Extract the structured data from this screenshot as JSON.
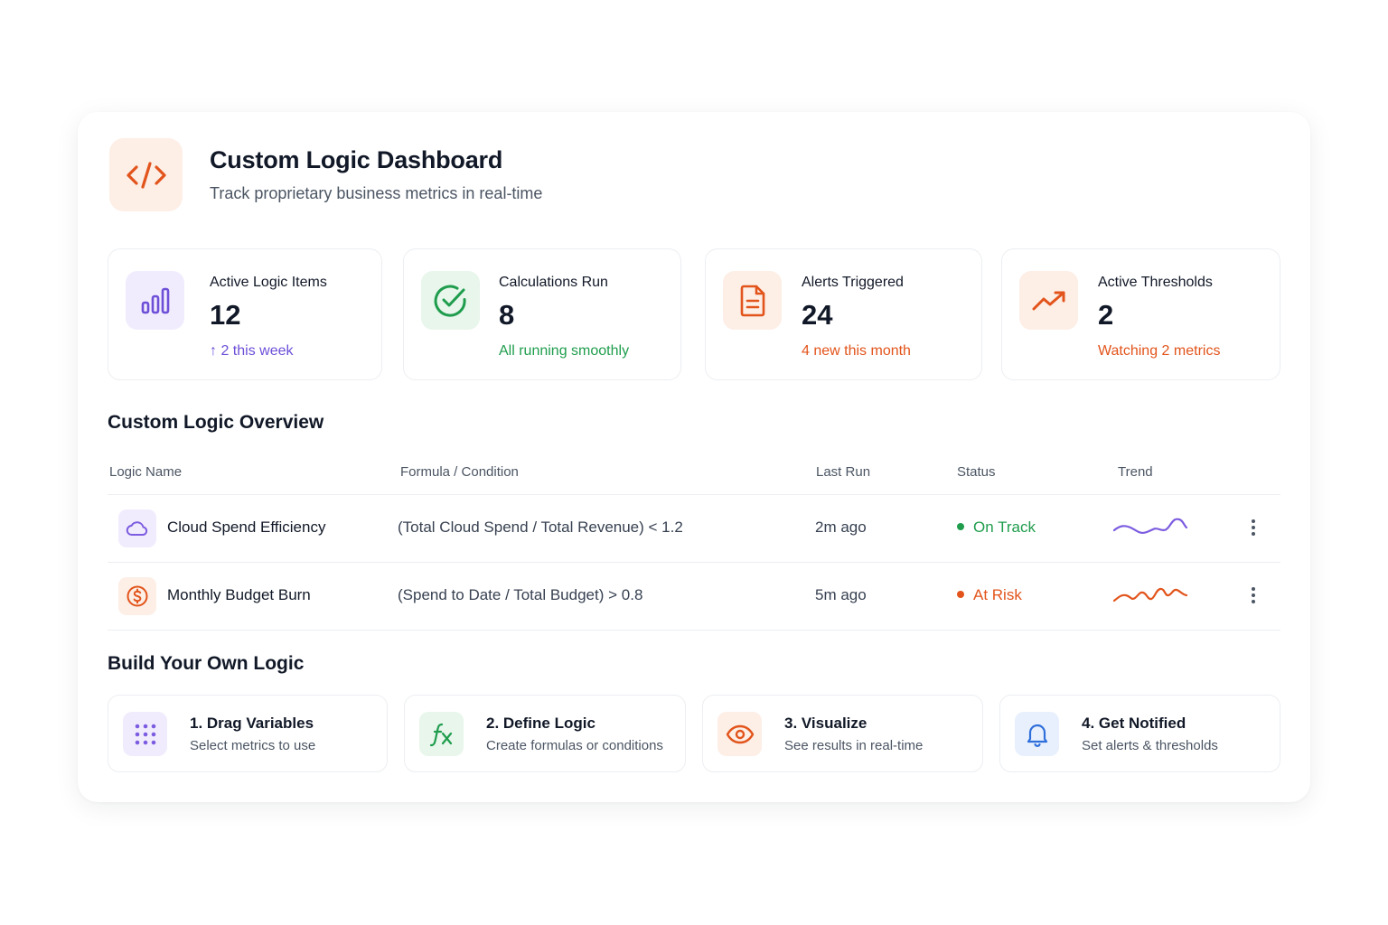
{
  "header": {
    "title": "Custom Logic Dashboard",
    "subtitle": "Track proprietary business metrics in real-time",
    "icon": "code-icon"
  },
  "stats": [
    {
      "label": "Active Logic Items",
      "value": "12",
      "note": "↑ 2 this week",
      "icon": "bar-chart-icon",
      "color": "#6d4fd8",
      "bg": "#f1ecfd"
    },
    {
      "label": "Calculations Run",
      "value": "8",
      "note": "All running smoothly",
      "icon": "check-circle-icon",
      "color": "#1f9d4d",
      "bg": "#e8f6ec"
    },
    {
      "label": "Alerts Triggered",
      "value": "24",
      "note": "4 new this month",
      "icon": "document-icon",
      "color": "#e2541b",
      "bg": "#fdeee6"
    },
    {
      "label": "Active Thresholds",
      "value": "2",
      "note": "Watching 2 metrics",
      "icon": "trending-up-icon",
      "color": "#e2541b",
      "bg": "#fdeee6"
    }
  ],
  "overview": {
    "title": "Custom Logic Overview",
    "columns": [
      "Logic Name",
      "Formula / Condition",
      "Last Run",
      "Status",
      "Trend"
    ],
    "rows": [
      {
        "name": "Cloud Spend Efficiency",
        "formula": "(Total Cloud Spend / Total Revenue) < 1.2",
        "last_run": "2m ago",
        "status": "On Track",
        "status_color": "#1f9d4d",
        "trend_color": "#7c5ce0",
        "icon": "cloud-icon",
        "icon_bg": "#f1ecfd"
      },
      {
        "name": "Monthly Budget Burn",
        "formula": "(Spend to Date / Total Budget) > 0.8",
        "last_run": "5m ago",
        "status": "At Risk",
        "status_color": "#e2541b",
        "trend_color": "#e2541b",
        "icon": "dollar-icon",
        "icon_bg": "#fdeee6"
      }
    ]
  },
  "build": {
    "title": "Build Your Own Logic",
    "steps": [
      {
        "title": "1. Drag Variables",
        "desc": "Select metrics to use",
        "icon": "grid-dots-icon",
        "color": "#7c5ce0",
        "bg": "#f1ecfd"
      },
      {
        "title": "2. Define Logic",
        "desc": "Create formulas or conditions",
        "icon": "function-icon",
        "color": "#1f9d4d",
        "bg": "#e8f6ec"
      },
      {
        "title": "3. Visualize",
        "desc": "See results in real-time",
        "icon": "eye-icon",
        "color": "#e2541b",
        "bg": "#fdeee6"
      },
      {
        "title": "4. Get Notified",
        "desc": "Set alerts & thresholds",
        "icon": "bell-icon",
        "color": "#2f6fdb",
        "bg": "#e8f0fd"
      }
    ]
  }
}
